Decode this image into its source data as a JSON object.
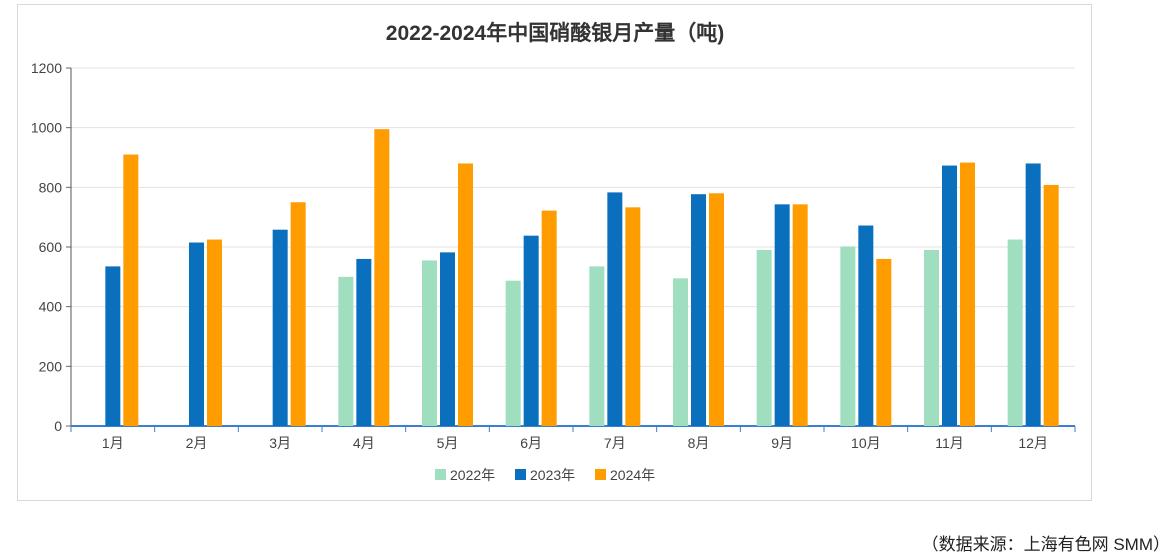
{
  "chart_data": {
    "type": "bar",
    "title": "2022-2024年中国硝酸银月产量（吨)",
    "categories": [
      "1月",
      "2月",
      "3月",
      "4月",
      "5月",
      "6月",
      "7月",
      "8月",
      "9月",
      "10月",
      "11月",
      "12月"
    ],
    "series": [
      {
        "name": "2022年",
        "color": "#9fdfc0",
        "values": [
          null,
          null,
          null,
          500,
          555,
          487,
          535,
          495,
          590,
          602,
          590,
          625
        ]
      },
      {
        "name": "2023年",
        "color": "#0a6fbd",
        "values": [
          535,
          615,
          658,
          560,
          582,
          638,
          783,
          777,
          743,
          672,
          873,
          880
        ]
      },
      {
        "name": "2024年",
        "color": "#ff9c00",
        "values": [
          910,
          625,
          750,
          995,
          880,
          722,
          733,
          780,
          743,
          560,
          883,
          808
        ]
      }
    ],
    "yticks": [
      "0",
      "200",
      "400",
      "600",
      "800",
      "1000",
      "1200"
    ],
    "ylim": [
      0,
      1200
    ],
    "grid": true,
    "legend": "bottom"
  },
  "source": "（数据来源：上海有色网 SMM）"
}
